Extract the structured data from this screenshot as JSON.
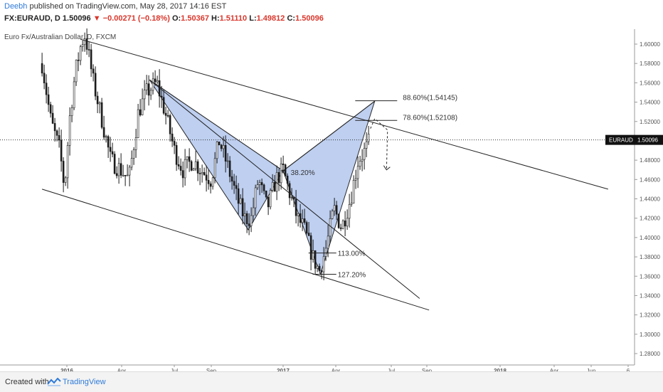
{
  "header": {
    "author": "Deebh",
    "published": "published on TradingView.com, May 28, 2017 14:16 EST",
    "symbol": "FX:EURAUD, D",
    "last": "1.50096",
    "change": "−0.00271 (−0.18%)",
    "o_label": "O:",
    "o_value": "1.50367",
    "h_label": "H:",
    "h_value": "1.51110",
    "l_label": "L:",
    "l_value": "1.49812",
    "c_label": "C:",
    "c_value": "1.50096"
  },
  "footer": {
    "created_with": "Created with",
    "brand": "TradingView"
  },
  "chart_data": {
    "type": "candlestick",
    "title": "Euro Fx/Australian Dollar, D, FXCM",
    "ylim": [
      1.27,
      1.62
    ],
    "y_ticks": [
      "1.60000",
      "1.58000",
      "1.56000",
      "1.54000",
      "1.52000",
      "1.50000",
      "1.48000",
      "1.46000",
      "1.44000",
      "1.42000",
      "1.40000",
      "1.38000",
      "1.36000",
      "1.34000",
      "1.32000",
      "1.30000",
      "1.28000"
    ],
    "x_ticks": [
      "2016",
      "Apr",
      "Jul",
      "Sep",
      "2017",
      "Apr",
      "Jul",
      "Sep",
      "2018",
      "Apr",
      "Jun",
      "6"
    ],
    "current_price": {
      "label": "EURAUD",
      "value": "1.50096",
      "price": 1.50096
    },
    "price_path": [
      [
        "2015-11-20",
        1.58
      ],
      [
        "2015-12-05",
        1.52
      ],
      [
        "2015-12-20",
        1.49
      ],
      [
        "2015-12-28",
        1.45
      ],
      [
        "2016-01-05",
        1.52
      ],
      [
        "2016-01-15",
        1.57
      ],
      [
        "2016-01-25",
        1.6
      ],
      [
        "2016-02-01",
        1.61
      ],
      [
        "2016-02-15",
        1.56
      ],
      [
        "2016-03-01",
        1.52
      ],
      [
        "2016-03-15",
        1.48
      ],
      [
        "2016-04-01",
        1.47
      ],
      [
        "2016-04-15",
        1.46
      ],
      [
        "2016-05-01",
        1.53
      ],
      [
        "2016-05-15",
        1.55
      ],
      [
        "2016-06-01",
        1.56
      ],
      [
        "2016-06-15",
        1.53
      ],
      [
        "2016-07-01",
        1.49
      ],
      [
        "2016-07-15",
        1.47
      ],
      [
        "2016-08-01",
        1.48
      ],
      [
        "2016-08-15",
        1.47
      ],
      [
        "2016-09-01",
        1.46
      ],
      [
        "2016-09-15",
        1.5
      ],
      [
        "2016-10-01",
        1.47
      ],
      [
        "2016-10-15",
        1.44
      ],
      [
        "2016-10-28",
        1.42
      ],
      [
        "2016-11-08",
        1.42
      ],
      [
        "2016-11-20",
        1.46
      ],
      [
        "2016-12-05",
        1.43
      ],
      [
        "2016-12-20",
        1.46
      ],
      [
        "2017-01-01",
        1.47
      ],
      [
        "2017-01-10",
        1.45
      ],
      [
        "2017-01-25",
        1.42
      ],
      [
        "2017-02-05",
        1.41
      ],
      [
        "2017-02-20",
        1.38
      ],
      [
        "2017-03-03",
        1.365
      ],
      [
        "2017-03-15",
        1.39
      ],
      [
        "2017-03-28",
        1.43
      ],
      [
        "2017-04-10",
        1.41
      ],
      [
        "2017-04-25",
        1.44
      ],
      [
        "2017-05-08",
        1.48
      ],
      [
        "2017-05-20",
        1.49
      ],
      [
        "2017-05-28",
        1.50096
      ]
    ],
    "harmonic_pattern": {
      "points": [
        [
          "2016-05-20",
          1.563
        ],
        [
          "2016-11-03",
          1.408
        ],
        [
          "2017-01-01",
          1.469
        ],
        [
          "2017-03-05",
          1.362
        ],
        [
          "2017-06-05",
          1.541
        ]
      ],
      "labels": [
        "38.20%",
        "113.00%",
        "127.20%",
        "78.60%(1.52108)",
        "88.60%(1.54145)"
      ]
    },
    "fib_levels": [
      {
        "label": "88.60%(1.54145)",
        "price": 1.54145,
        "from": "2017-05-03",
        "to": "2017-07-13"
      },
      {
        "label": "78.60%(1.52108)",
        "price": 1.52108,
        "from": "2017-05-03",
        "to": "2017-07-13"
      },
      {
        "label": "38.20%",
        "price": 1.469,
        "from": "2016-12-28",
        "to": "2017-01-06"
      },
      {
        "label": "113.00%",
        "price": 1.384,
        "from": "2017-02-13",
        "to": "2017-04-01"
      },
      {
        "label": "127.20%",
        "price": 1.362,
        "from": "2017-02-20",
        "to": "2017-04-01"
      }
    ],
    "trendlines": [
      {
        "name": "upper",
        "from": [
          "2016-01-24",
          1.605
        ],
        "to": [
          "2018-07-05",
          1.45
        ]
      },
      {
        "name": "lower",
        "from": [
          "2015-11-20",
          1.45
        ],
        "to": [
          "2017-09-05",
          1.325
        ]
      },
      {
        "name": "inner",
        "from": [
          "2016-05-20",
          1.563
        ],
        "to": [
          "2017-08-20",
          1.337
        ]
      }
    ],
    "projection_arrow": [
      [
        "2017-06-05",
        1.523
      ],
      [
        "2017-06-25",
        1.47
      ]
    ]
  }
}
